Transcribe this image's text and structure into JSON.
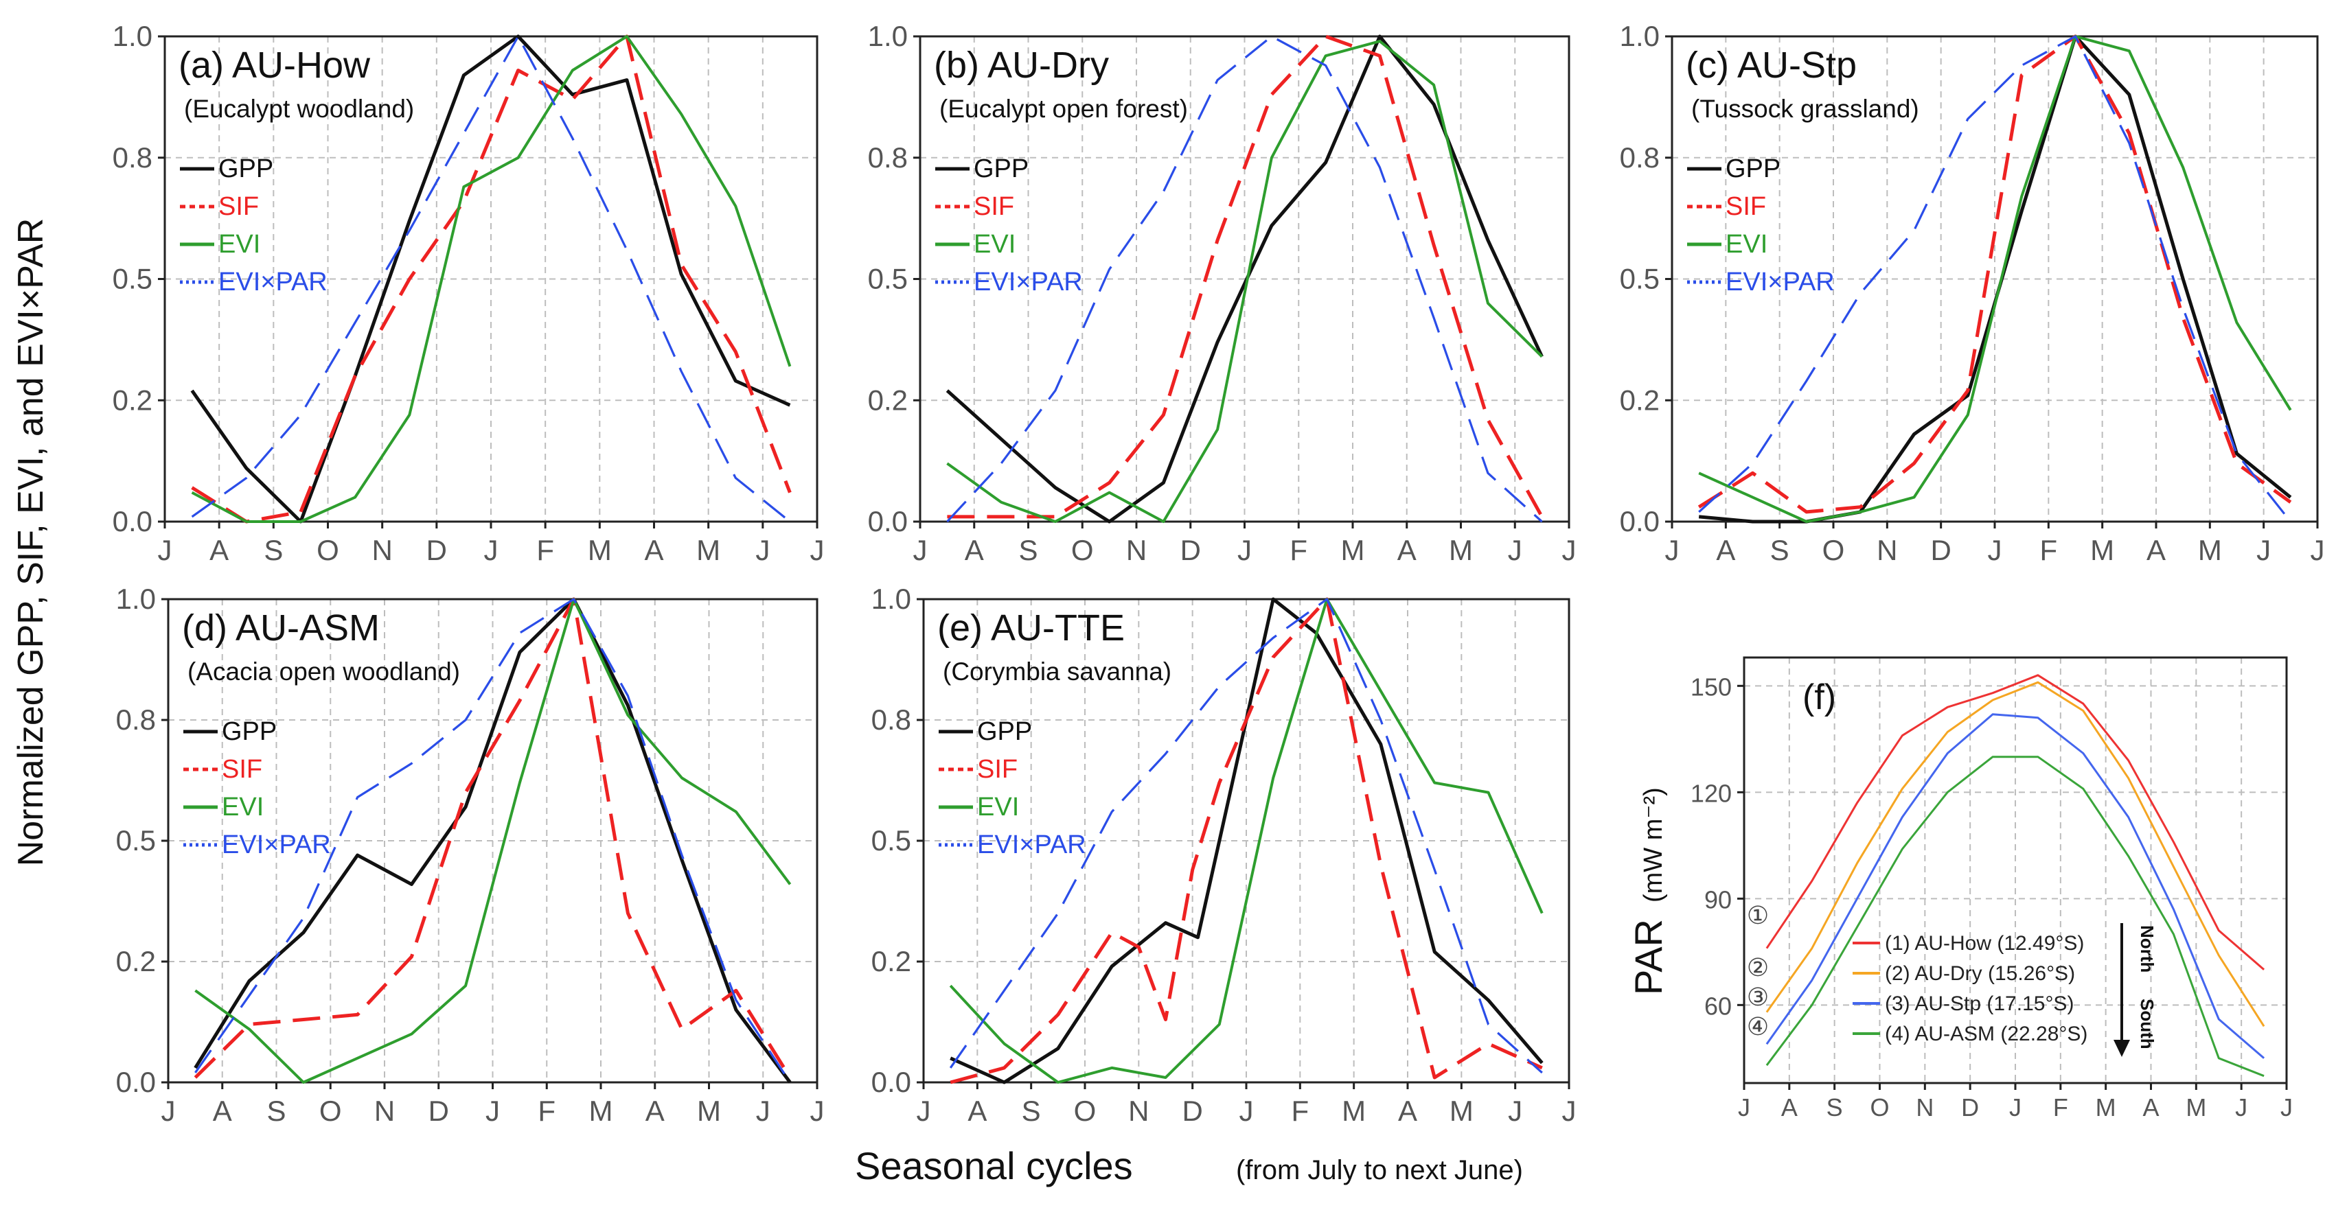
{
  "figure": {
    "ylabel": "Normalized GPP, SIF, EVI, and EVI×PAR",
    "xlabel_main": "Seasonal cycles",
    "xlabel_sub": "(from July to next June)"
  },
  "colors": {
    "GPP": "#111111",
    "SIF": "#ee2222",
    "EVI": "#2e9e2e",
    "EVI×PAR": "#2a4de8",
    "how": "#ee3333",
    "dry": "#f5a623",
    "stp": "#4466ee",
    "asm": "#3aa53a"
  },
  "chart_data": [
    {
      "type": "line",
      "panel": "a",
      "title": "(a) AU-How",
      "subtitle": "(Eucalypt woodland)",
      "categories": [
        "J",
        "A",
        "S",
        "O",
        "N",
        "D",
        "J",
        "F",
        "M",
        "A",
        "M",
        "J",
        "J"
      ],
      "ylim": [
        0,
        1
      ],
      "yticks": [
        "0.0",
        "0.2",
        "0.5",
        "0.8",
        "1.0"
      ],
      "legend": [
        "GPP",
        "SIF",
        "EVI",
        "EVI×PAR"
      ],
      "x": [
        0.5,
        1.5,
        2.5,
        3.5,
        4.5,
        5.5,
        6.5,
        7.5,
        8.5,
        9.5,
        10.5,
        11.5
      ],
      "series": [
        {
          "name": "GPP",
          "values": [
            0.27,
            0.11,
            0.0,
            0.3,
            0.62,
            0.92,
            1.0,
            0.88,
            0.91,
            0.51,
            0.29,
            0.24
          ]
        },
        {
          "name": "SIF",
          "values": [
            0.07,
            0.0,
            0.02,
            0.3,
            0.5,
            0.66,
            0.93,
            0.87,
            1.0,
            0.53,
            0.35,
            0.06
          ]
        },
        {
          "name": "EVI",
          "values": [
            0.06,
            0.0,
            0.0,
            0.05,
            0.22,
            0.69,
            0.75,
            0.93,
            1.0,
            0.84,
            0.65,
            0.32
          ]
        },
        {
          "name": "EVI×PAR",
          "values": [
            0.01,
            0.09,
            0.22,
            0.41,
            0.6,
            0.8,
            1.0,
            0.79,
            0.56,
            0.31,
            0.09,
            0.0
          ]
        }
      ]
    },
    {
      "type": "line",
      "panel": "b",
      "title": "(b) AU-Dry",
      "subtitle": "(Eucalypt open forest)",
      "categories": [
        "J",
        "A",
        "S",
        "O",
        "N",
        "D",
        "J",
        "F",
        "M",
        "A",
        "M",
        "J",
        "J"
      ],
      "ylim": [
        0,
        1
      ],
      "yticks": [
        "0.0",
        "0.2",
        "0.5",
        "0.8",
        "1.0"
      ],
      "legend": [
        "GPP",
        "SIF",
        "EVI",
        "EVI×PAR"
      ],
      "x": [
        0.5,
        1.5,
        2.5,
        3.5,
        4.5,
        5.5,
        6.5,
        7.5,
        8.5,
        9.5,
        10.5,
        11.5
      ],
      "series": [
        {
          "name": "GPP",
          "values": [
            0.27,
            0.17,
            0.07,
            0.0,
            0.08,
            0.37,
            0.61,
            0.74,
            1.0,
            0.86,
            0.58,
            0.34
          ]
        },
        {
          "name": "SIF",
          "values": [
            0.01,
            0.01,
            0.01,
            0.08,
            0.22,
            0.58,
            0.88,
            1.0,
            0.96,
            0.57,
            0.21,
            0.01
          ]
        },
        {
          "name": "EVI",
          "values": [
            0.12,
            0.04,
            0.0,
            0.06,
            0.0,
            0.19,
            0.75,
            0.96,
            0.99,
            0.9,
            0.45,
            0.34
          ]
        },
        {
          "name": "EVI×PAR",
          "values": [
            0.0,
            0.12,
            0.27,
            0.52,
            0.68,
            0.91,
            1.0,
            0.94,
            0.73,
            0.42,
            0.1,
            0.0
          ]
        }
      ]
    },
    {
      "type": "line",
      "panel": "c",
      "title": "(c) AU-Stp",
      "subtitle": "(Tussock grassland)",
      "categories": [
        "J",
        "A",
        "S",
        "O",
        "N",
        "D",
        "J",
        "F",
        "M",
        "A",
        "M",
        "J",
        "J"
      ],
      "ylim": [
        0,
        1
      ],
      "yticks": [
        "0.0",
        "0.2",
        "0.5",
        "0.8",
        "1.0"
      ],
      "legend": [
        "GPP",
        "SIF",
        "EVI",
        "EVI×PAR"
      ],
      "x": [
        0.5,
        1.5,
        2.5,
        3.5,
        4.5,
        5.5,
        6.5,
        7.5,
        8.5,
        9.5,
        10.5,
        11.5
      ],
      "series": [
        {
          "name": "GPP",
          "values": [
            0.01,
            0.0,
            0.0,
            0.02,
            0.18,
            0.26,
            0.64,
            1.0,
            0.88,
            0.5,
            0.14,
            0.05
          ]
        },
        {
          "name": "SIF",
          "values": [
            0.03,
            0.1,
            0.02,
            0.03,
            0.12,
            0.27,
            0.92,
            1.0,
            0.8,
            0.42,
            0.12,
            0.04
          ]
        },
        {
          "name": "EVI",
          "values": [
            0.1,
            0.05,
            0.0,
            0.02,
            0.05,
            0.22,
            0.67,
            1.0,
            0.97,
            0.73,
            0.41,
            0.23
          ]
        },
        {
          "name": "EVI×PAR",
          "values": [
            0.02,
            0.12,
            0.29,
            0.47,
            0.6,
            0.83,
            0.94,
            1.0,
            0.78,
            0.44,
            0.14,
            0.0
          ]
        }
      ]
    },
    {
      "type": "line",
      "panel": "d",
      "title": "(d) AU-ASM",
      "subtitle": "(Acacia open woodland)",
      "categories": [
        "J",
        "A",
        "S",
        "O",
        "N",
        "D",
        "J",
        "F",
        "M",
        "A",
        "M",
        "J",
        "J"
      ],
      "ylim": [
        0,
        1
      ],
      "yticks": [
        "0.0",
        "0.2",
        "0.5",
        "0.8",
        "1.0"
      ],
      "legend": [
        "GPP",
        "SIF",
        "EVI",
        "EVI×PAR"
      ],
      "x": [
        0.5,
        1.5,
        2.5,
        3.5,
        4.5,
        5.5,
        6.5,
        7.5,
        8.5,
        9.5,
        10.5,
        11.5
      ],
      "series": [
        {
          "name": "GPP",
          "values": [
            0.03,
            0.21,
            0.31,
            0.47,
            0.41,
            0.57,
            0.89,
            1.0,
            0.78,
            0.46,
            0.15,
            0.0
          ]
        },
        {
          "name": "SIF",
          "values": [
            0.01,
            0.12,
            0.13,
            0.14,
            0.26,
            0.6,
            0.79,
            1.0,
            0.35,
            0.11,
            0.19,
            0.01
          ]
        },
        {
          "name": "EVI",
          "values": [
            0.19,
            0.11,
            0.0,
            0.05,
            0.1,
            0.2,
            0.62,
            1.0,
            0.76,
            0.63,
            0.56,
            0.41
          ]
        },
        {
          "name": "EVI×PAR",
          "values": [
            0.02,
            0.18,
            0.34,
            0.59,
            0.66,
            0.75,
            0.93,
            1.0,
            0.8,
            0.47,
            0.17,
            0.0
          ]
        }
      ]
    },
    {
      "type": "line",
      "panel": "e",
      "title": "(e) AU-TTE",
      "subtitle": "(Corymbia savanna)",
      "categories": [
        "J",
        "A",
        "S",
        "O",
        "N",
        "D",
        "J",
        "F",
        "M",
        "A",
        "M",
        "J",
        "J"
      ],
      "ylim": [
        0,
        1
      ],
      "yticks": [
        "0.0",
        "0.2",
        "0.5",
        "0.8",
        "1.0"
      ],
      "legend": [
        "GPP",
        "SIF",
        "EVI",
        "EVI×PAR"
      ],
      "x": [
        0.5,
        1.0,
        1.5,
        2.5,
        3.5,
        4.5,
        5.3,
        6.0,
        6.5,
        7.3,
        7.5,
        8.5,
        9.5,
        10.5,
        11.5
      ],
      "series": [
        {
          "name": "GPP",
          "x": [
            0.5,
            1.5,
            2.5,
            3.5,
            4.5,
            5.1,
            6.5,
            7.3,
            8.5,
            9.5,
            10.5,
            11.5
          ],
          "values": [
            0.05,
            0.0,
            0.07,
            0.24,
            0.33,
            0.3,
            1.0,
            0.93,
            0.7,
            0.27,
            0.17,
            0.04
          ]
        },
        {
          "name": "SIF",
          "x": [
            0.5,
            1.5,
            2.5,
            3.5,
            4.0,
            4.5,
            5.0,
            5.5,
            6.5,
            7.5,
            8.5,
            9.5,
            10.5,
            11.5
          ],
          "values": [
            0.0,
            0.03,
            0.14,
            0.31,
            0.28,
            0.13,
            0.44,
            0.62,
            0.88,
            1.0,
            0.45,
            0.01,
            0.08,
            0.03
          ]
        },
        {
          "name": "EVI",
          "x": [
            0.5,
            1.5,
            2.5,
            3.5,
            4.5,
            5.5,
            6.5,
            7.5,
            8.5,
            9.5,
            10.5,
            11.5
          ],
          "values": [
            0.2,
            0.08,
            0.0,
            0.03,
            0.01,
            0.12,
            0.63,
            1.0,
            0.81,
            0.62,
            0.6,
            0.35
          ]
        },
        {
          "name": "EVI×PAR",
          "x": [
            0.5,
            1.5,
            2.5,
            3.5,
            4.5,
            5.5,
            6.5,
            7.5,
            8.5,
            9.5,
            10.5,
            11.5
          ],
          "values": [
            0.03,
            0.19,
            0.35,
            0.56,
            0.68,
            0.82,
            0.92,
            1.0,
            0.75,
            0.44,
            0.12,
            0.02
          ]
        }
      ]
    },
    {
      "type": "line",
      "panel": "f",
      "title": "(f)",
      "ylabel": "PAR",
      "ylabel_unit": "(mW m⁻²)",
      "categories": [
        "J",
        "A",
        "S",
        "O",
        "N",
        "D",
        "J",
        "F",
        "M",
        "A",
        "M",
        "J",
        "J"
      ],
      "ylim": [
        38,
        158
      ],
      "yticks": [
        60,
        90,
        120,
        150
      ],
      "x": [
        0.5,
        1.5,
        2.5,
        3.5,
        4.5,
        5.5,
        6.5,
        7.5,
        8.5,
        9.5,
        10.5,
        11.5
      ],
      "series": [
        {
          "name": "(1) AU-How (12.49°S)",
          "marker": "①",
          "values": [
            76,
            95,
            117,
            136,
            144,
            148,
            153,
            145,
            129,
            106,
            81,
            70
          ]
        },
        {
          "name": "(2) AU-Dry (15.26°S)",
          "marker": "②",
          "values": [
            58,
            76,
            100,
            121,
            137,
            146,
            151,
            143,
            124,
            99,
            74,
            54
          ]
        },
        {
          "name": "(3) AU-Stp (17.15°S)",
          "marker": "③",
          "values": [
            49,
            67,
            90,
            113,
            131,
            142,
            141,
            131,
            113,
            87,
            56,
            45
          ]
        },
        {
          "name": "(4) AU-ASM (22.28°S)",
          "marker": "④",
          "values": [
            43,
            60,
            82,
            104,
            120,
            130,
            130,
            121,
            102,
            80,
            45,
            40
          ]
        }
      ],
      "annotation": {
        "north": "North",
        "south": "South"
      }
    }
  ]
}
